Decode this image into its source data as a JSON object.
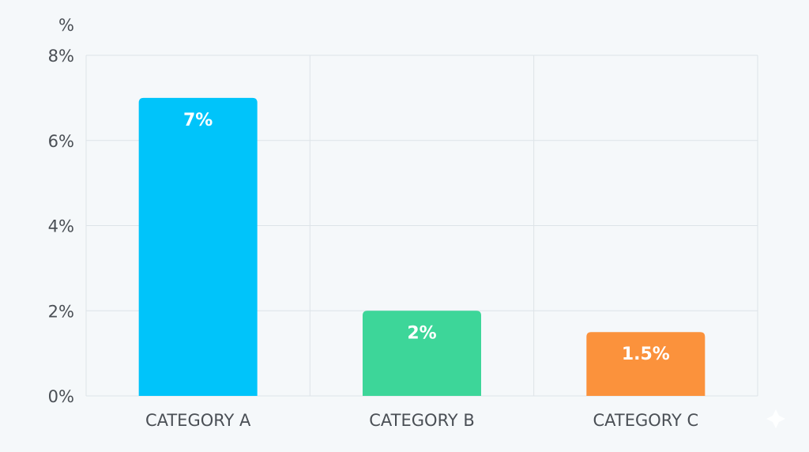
{
  "chart_data": {
    "type": "bar",
    "title": "",
    "xlabel": "",
    "ylabel": "%",
    "ylim": [
      0,
      8
    ],
    "yticks": [
      0,
      2,
      4,
      6,
      8
    ],
    "ytick_labels": [
      "0%",
      "2%",
      "4%",
      "6%",
      "8%"
    ],
    "categories": [
      "CATEGORY A",
      "CATEGORY B",
      "CATEGORY C"
    ],
    "values": [
      7,
      2,
      1.5
    ],
    "data_labels": [
      "7%",
      "2%",
      "1.5%"
    ],
    "colors": [
      "#00c4fa",
      "#3dd699",
      "#fb923c"
    ],
    "grid": true,
    "legend": "none"
  }
}
